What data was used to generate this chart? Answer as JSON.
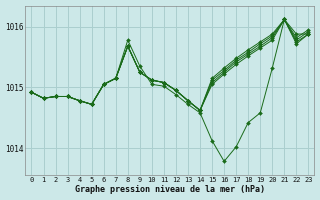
{
  "title": "Graphe pression niveau de la mer (hPa)",
  "background_color": "#cce8e8",
  "grid_color": "#aacece",
  "line_color": "#1a6b1a",
  "marker_color": "#1a6b1a",
  "xlim": [
    -0.5,
    23.5
  ],
  "ylim": [
    1013.55,
    1016.35
  ],
  "yticks": [
    1014,
    1015,
    1016
  ],
  "xticks": [
    0,
    1,
    2,
    3,
    4,
    5,
    6,
    7,
    8,
    9,
    10,
    11,
    12,
    13,
    14,
    15,
    16,
    17,
    18,
    19,
    20,
    21,
    22,
    23
  ],
  "series": [
    [
      1014.92,
      1014.82,
      1014.85,
      1014.85,
      1014.78,
      1014.72,
      1015.05,
      1015.15,
      1015.78,
      1015.35,
      1015.05,
      1015.02,
      1014.88,
      1014.72,
      1014.58,
      1014.12,
      1013.78,
      1014.02,
      1014.42,
      1014.58,
      1015.32,
      1016.12,
      1015.88,
      1015.88
    ],
    [
      1014.92,
      1014.82,
      1014.85,
      1014.85,
      1014.78,
      1014.72,
      1015.05,
      1015.15,
      1015.68,
      1015.25,
      1015.12,
      1015.08,
      1014.95,
      1014.78,
      1014.62,
      1015.05,
      1015.22,
      1015.38,
      1015.52,
      1015.65,
      1015.78,
      1016.12,
      1015.72,
      1015.88
    ],
    [
      1014.92,
      1014.82,
      1014.85,
      1014.85,
      1014.78,
      1014.72,
      1015.05,
      1015.15,
      1015.68,
      1015.25,
      1015.12,
      1015.08,
      1014.95,
      1014.78,
      1014.62,
      1015.08,
      1015.25,
      1015.42,
      1015.55,
      1015.68,
      1015.82,
      1016.12,
      1015.75,
      1015.88
    ],
    [
      1014.92,
      1014.82,
      1014.85,
      1014.85,
      1014.78,
      1014.72,
      1015.05,
      1015.15,
      1015.68,
      1015.25,
      1015.12,
      1015.08,
      1014.95,
      1014.78,
      1014.62,
      1015.12,
      1015.28,
      1015.45,
      1015.58,
      1015.72,
      1015.85,
      1016.12,
      1015.78,
      1015.92
    ],
    [
      1014.92,
      1014.82,
      1014.85,
      1014.85,
      1014.78,
      1014.72,
      1015.05,
      1015.15,
      1015.68,
      1015.25,
      1015.12,
      1015.08,
      1014.95,
      1014.78,
      1014.62,
      1015.15,
      1015.32,
      1015.48,
      1015.62,
      1015.75,
      1015.88,
      1016.12,
      1015.82,
      1015.95
    ]
  ]
}
